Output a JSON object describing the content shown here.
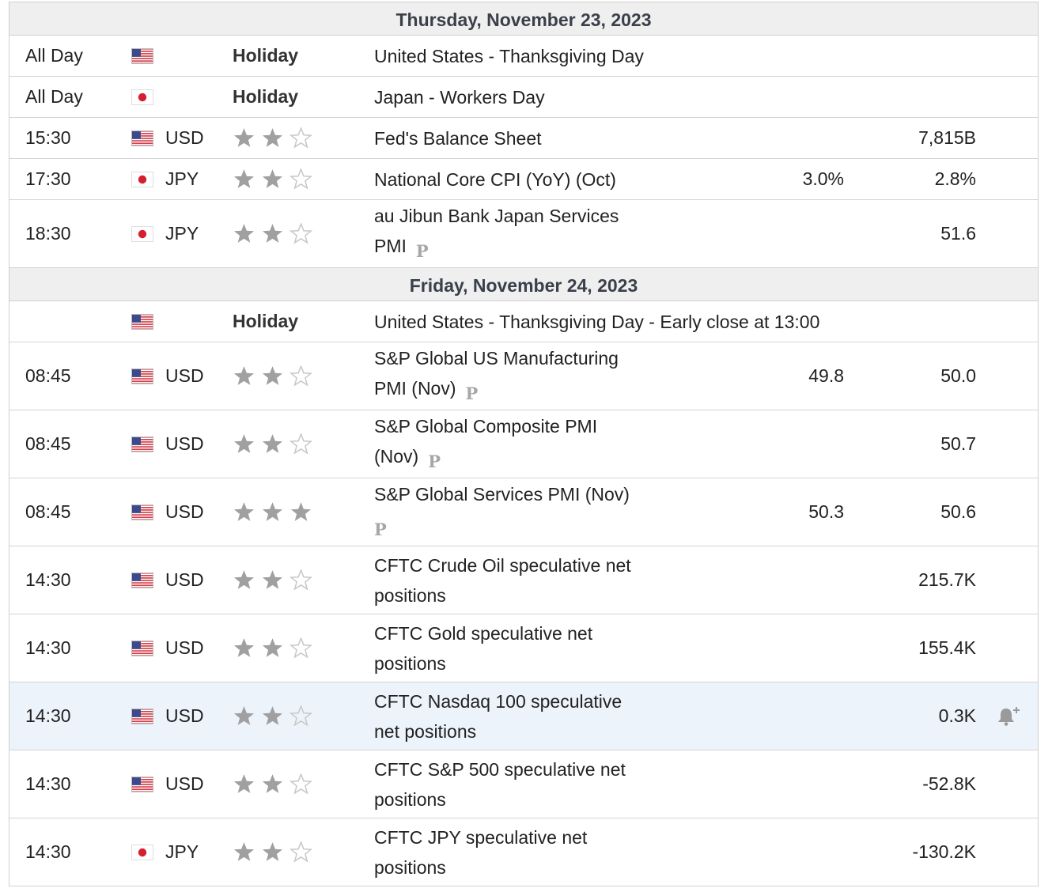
{
  "colors": {
    "header_bg": "#efefef",
    "highlight_bg": "#edf3fb",
    "star_filled": "#a0a0a0",
    "star_empty": "#c8c8c8",
    "p_badge": "#a7a7a7"
  },
  "days": [
    {
      "date": "Thursday, November 23, 2023",
      "events": [
        {
          "time": "All Day",
          "flag": "us-flag-icon",
          "currency": "",
          "holiday": "Holiday",
          "importance": 0,
          "name": "United States - Thanksgiving Day",
          "preliminary": false,
          "actual": "",
          "forecast": "",
          "rows": 1
        },
        {
          "time": "All Day",
          "flag": "jp-flag-icon",
          "currency": "",
          "holiday": "Holiday",
          "importance": 0,
          "name": "Japan - Workers Day",
          "preliminary": false,
          "actual": "",
          "forecast": "",
          "rows": 1
        },
        {
          "time": "15:30",
          "flag": "us-flag-icon",
          "currency": "USD",
          "holiday": "",
          "importance": 2,
          "name": "Fed's Balance Sheet",
          "preliminary": false,
          "actual": "",
          "forecast": "7,815B",
          "rows": 1
        },
        {
          "time": "17:30",
          "flag": "jp-flag-icon",
          "currency": "JPY",
          "holiday": "",
          "importance": 2,
          "name": "National Core CPI (YoY) (Oct)",
          "preliminary": false,
          "actual": "3.0%",
          "forecast": "2.8%",
          "rows": 1
        },
        {
          "time": "18:30",
          "flag": "jp-flag-icon",
          "currency": "JPY",
          "holiday": "",
          "importance": 2,
          "name": "au Jibun Bank Japan Services",
          "name2": "PMI",
          "preliminary": true,
          "actual": "",
          "forecast": "51.6",
          "rows": 2
        }
      ]
    },
    {
      "date": "Friday, November 24, 2023",
      "events": [
        {
          "time": "",
          "flag": "us-flag-icon",
          "currency": "",
          "holiday": "Holiday",
          "importance": 0,
          "name": "United States - Thanksgiving Day - Early close at 13:00",
          "preliminary": false,
          "actual": "",
          "forecast": "",
          "rows": 1
        },
        {
          "time": "08:45",
          "flag": "us-flag-icon",
          "currency": "USD",
          "holiday": "",
          "importance": 2,
          "name": "S&P Global US Manufacturing",
          "name2": "PMI (Nov)",
          "preliminary": true,
          "actual": "49.8",
          "forecast": "50.0",
          "rows": 2
        },
        {
          "time": "08:45",
          "flag": "us-flag-icon",
          "currency": "USD",
          "holiday": "",
          "importance": 2,
          "name": "S&P Global Composite PMI",
          "name2": "(Nov)",
          "preliminary": true,
          "actual": "",
          "forecast": "50.7",
          "rows": 2
        },
        {
          "time": "08:45",
          "flag": "us-flag-icon",
          "currency": "USD",
          "holiday": "",
          "importance": 3,
          "name": "S&P Global Services PMI (Nov)",
          "name2": "",
          "preliminary": true,
          "actual": "50.3",
          "forecast": "50.6",
          "rows": 2
        },
        {
          "time": "14:30",
          "flag": "us-flag-icon",
          "currency": "USD",
          "holiday": "",
          "importance": 2,
          "name": "CFTC Crude Oil speculative net",
          "name2": "positions",
          "preliminary": false,
          "actual": "",
          "forecast": "215.7K",
          "rows": 2
        },
        {
          "time": "14:30",
          "flag": "us-flag-icon",
          "currency": "USD",
          "holiday": "",
          "importance": 2,
          "name": "CFTC Gold speculative net",
          "name2": "positions",
          "preliminary": false,
          "actual": "",
          "forecast": "155.4K",
          "rows": 2
        },
        {
          "time": "14:30",
          "flag": "us-flag-icon",
          "currency": "USD",
          "holiday": "",
          "importance": 2,
          "name": "CFTC Nasdaq 100 speculative",
          "name2": "net positions",
          "preliminary": false,
          "actual": "",
          "forecast": "0.3K",
          "rows": 2,
          "highlighted": true,
          "alert_icon": "bell-plus-icon"
        },
        {
          "time": "14:30",
          "flag": "us-flag-icon",
          "currency": "USD",
          "holiday": "",
          "importance": 2,
          "name": "CFTC S&P 500 speculative net",
          "name2": "positions",
          "preliminary": false,
          "actual": "",
          "forecast": "-52.8K",
          "rows": 2
        },
        {
          "time": "14:30",
          "flag": "jp-flag-icon",
          "currency": "JPY",
          "holiday": "",
          "importance": 2,
          "name": "CFTC JPY speculative net",
          "name2": "positions",
          "preliminary": false,
          "actual": "",
          "forecast": "-130.2K",
          "rows": 2
        }
      ]
    }
  ]
}
